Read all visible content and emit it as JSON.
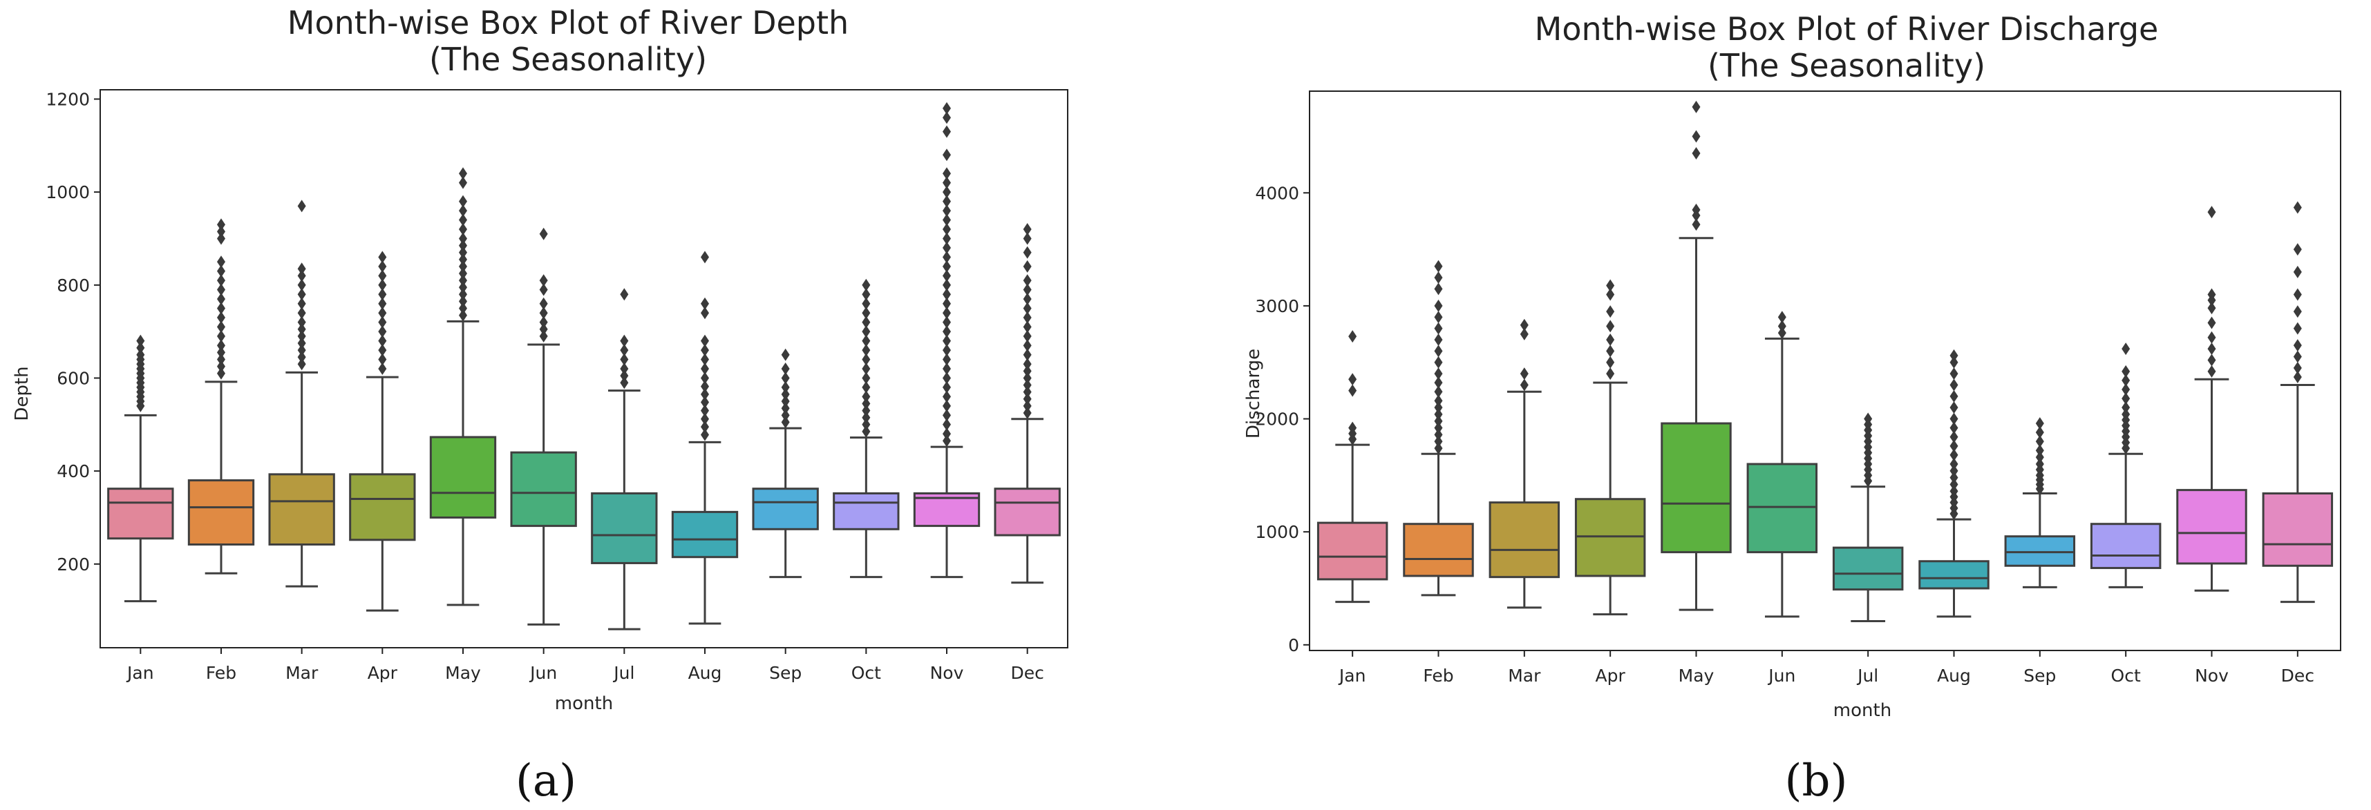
{
  "chart_data": [
    {
      "type": "box",
      "title_line1": "Month-wise Box Plot of River Depth",
      "title_line2": "(The Seasonality)",
      "xlabel": "month",
      "ylabel": "Depth",
      "ylim": [
        20,
        1220
      ],
      "yticks": [
        200,
        400,
        600,
        800,
        1000,
        1200
      ],
      "panel_label": "(a)",
      "categories": [
        "Jan",
        "Feb",
        "Mar",
        "Apr",
        "May",
        "Jun",
        "Jul",
        "Aug",
        "Sep",
        "Oct",
        "Nov",
        "Dec"
      ],
      "colors": [
        "#e1879a",
        "#e08a43",
        "#b69a3f",
        "#94a43e",
        "#5cb13f",
        "#48ae7b",
        "#45aa9b",
        "#3ea9b4",
        "#4fadd9",
        "#a69ef3",
        "#e483e3",
        "#e38ac1"
      ],
      "boxes": [
        {
          "whislo": 120,
          "q1": 255,
          "med": 332,
          "q3": 362,
          "whishi": 520,
          "fliers": [
            540,
            550,
            560,
            570,
            580,
            590,
            600,
            610,
            620,
            630,
            640,
            650,
            665,
            680
          ]
        },
        {
          "whislo": 180,
          "q1": 242,
          "med": 322,
          "q3": 380,
          "whishi": 592,
          "fliers": [
            610,
            625,
            640,
            655,
            670,
            690,
            710,
            730,
            750,
            770,
            790,
            810,
            830,
            850,
            900,
            915,
            930
          ]
        },
        {
          "whislo": 152,
          "q1": 242,
          "med": 335,
          "q3": 393,
          "whishi": 612,
          "fliers": [
            630,
            645,
            660,
            675,
            690,
            705,
            720,
            740,
            760,
            780,
            800,
            820,
            835,
            970
          ]
        },
        {
          "whislo": 100,
          "q1": 252,
          "med": 340,
          "q3": 393,
          "whishi": 602,
          "fliers": [
            620,
            640,
            660,
            680,
            700,
            720,
            740,
            760,
            780,
            800,
            820,
            840,
            860
          ]
        },
        {
          "whislo": 112,
          "q1": 300,
          "med": 353,
          "q3": 473,
          "whishi": 722,
          "fliers": [
            735,
            750,
            765,
            780,
            795,
            810,
            825,
            840,
            855,
            870,
            885,
            900,
            920,
            940,
            960,
            980,
            1020,
            1040
          ]
        },
        {
          "whislo": 70,
          "q1": 282,
          "med": 353,
          "q3": 440,
          "whishi": 672,
          "fliers": [
            690,
            705,
            720,
            740,
            760,
            790,
            810,
            910
          ]
        },
        {
          "whislo": 60,
          "q1": 202,
          "med": 262,
          "q3": 352,
          "whishi": 573,
          "fliers": [
            590,
            605,
            620,
            640,
            660,
            680,
            780
          ]
        },
        {
          "whislo": 72,
          "q1": 215,
          "med": 253,
          "q3": 312,
          "whishi": 462,
          "fliers": [
            478,
            495,
            512,
            530,
            548,
            565,
            582,
            600,
            620,
            640,
            660,
            680,
            740,
            760,
            860
          ]
        },
        {
          "whislo": 172,
          "q1": 275,
          "med": 333,
          "q3": 362,
          "whishi": 492,
          "fliers": [
            505,
            520,
            535,
            550,
            565,
            580,
            600,
            620,
            650
          ]
        },
        {
          "whislo": 172,
          "q1": 275,
          "med": 332,
          "q3": 352,
          "whishi": 472,
          "fliers": [
            485,
            500,
            515,
            530,
            545,
            560,
            580,
            600,
            620,
            640,
            660,
            680,
            700,
            720,
            740,
            760,
            780,
            800
          ]
        },
        {
          "whislo": 172,
          "q1": 282,
          "med": 342,
          "q3": 352,
          "whishi": 452,
          "fliers": [
            465,
            480,
            500,
            520,
            540,
            560,
            580,
            600,
            620,
            640,
            660,
            680,
            700,
            720,
            740,
            760,
            780,
            800,
            820,
            840,
            860,
            880,
            900,
            920,
            940,
            960,
            980,
            1000,
            1020,
            1040,
            1080,
            1130,
            1160,
            1180
          ]
        },
        {
          "whislo": 160,
          "q1": 262,
          "med": 332,
          "q3": 362,
          "whishi": 512,
          "fliers": [
            525,
            540,
            555,
            570,
            585,
            600,
            615,
            630,
            650,
            670,
            690,
            710,
            730,
            750,
            770,
            790,
            810,
            840,
            870,
            900,
            920
          ]
        }
      ]
    },
    {
      "type": "box",
      "title_line1": "Month-wise Box Plot of River Discharge",
      "title_line2": "(The Seasonality)",
      "xlabel": "month",
      "ylabel": "Discharge",
      "ylim": [
        -50,
        4900
      ],
      "yticks": [
        0,
        1000,
        2000,
        3000,
        4000
      ],
      "panel_label": "(b)",
      "categories": [
        "Jan",
        "Feb",
        "Mar",
        "Apr",
        "May",
        "Jun",
        "Jul",
        "Aug",
        "Sep",
        "Oct",
        "Nov",
        "Dec"
      ],
      "colors": [
        "#e1879a",
        "#e08a43",
        "#b69a3f",
        "#94a43e",
        "#5cb13f",
        "#48ae7b",
        "#45aa9b",
        "#3ea9b4",
        "#4fadd9",
        "#a69ef3",
        "#e483e3",
        "#e38ac1"
      ],
      "boxes": [
        {
          "whislo": 380,
          "q1": 580,
          "med": 780,
          "q3": 1080,
          "whishi": 1770,
          "fliers": [
            1820,
            1870,
            1920,
            2250,
            2350,
            2730
          ]
        },
        {
          "whislo": 440,
          "q1": 610,
          "med": 760,
          "q3": 1070,
          "whishi": 1690,
          "fliers": [
            1740,
            1800,
            1860,
            1920,
            1980,
            2040,
            2100,
            2160,
            2240,
            2320,
            2400,
            2500,
            2600,
            2700,
            2800,
            2900,
            3000,
            3150,
            3250,
            3350
          ]
        },
        {
          "whislo": 330,
          "q1": 600,
          "med": 840,
          "q3": 1260,
          "whishi": 2240,
          "fliers": [
            2300,
            2400,
            2750,
            2830
          ]
        },
        {
          "whislo": 270,
          "q1": 610,
          "med": 960,
          "q3": 1290,
          "whishi": 2320,
          "fliers": [
            2400,
            2500,
            2600,
            2700,
            2820,
            2950,
            3100,
            3180
          ]
        },
        {
          "whislo": 310,
          "q1": 820,
          "med": 1250,
          "q3": 1960,
          "whishi": 3600,
          "fliers": [
            3720,
            3800,
            3850,
            4350,
            4500,
            4760
          ]
        },
        {
          "whislo": 250,
          "q1": 820,
          "med": 1220,
          "q3": 1600,
          "whishi": 2710,
          "fliers": [
            2760,
            2820,
            2900
          ]
        },
        {
          "whislo": 210,
          "q1": 490,
          "med": 630,
          "q3": 860,
          "whishi": 1400,
          "fliers": [
            1450,
            1500,
            1550,
            1600,
            1650,
            1700,
            1750,
            1800,
            1850,
            1900,
            1950,
            2000
          ]
        },
        {
          "whislo": 250,
          "q1": 500,
          "med": 590,
          "q3": 740,
          "whishi": 1110,
          "fliers": [
            1160,
            1210,
            1260,
            1310,
            1360,
            1420,
            1480,
            1540,
            1600,
            1680,
            1760,
            1840,
            1920,
            2000,
            2100,
            2200,
            2300,
            2400,
            2500,
            2560
          ]
        },
        {
          "whislo": 510,
          "q1": 700,
          "med": 820,
          "q3": 960,
          "whishi": 1340,
          "fliers": [
            1380,
            1420,
            1460,
            1500,
            1550,
            1600,
            1660,
            1720,
            1800,
            1880,
            1960
          ]
        },
        {
          "whislo": 510,
          "q1": 680,
          "med": 790,
          "q3": 1070,
          "whishi": 1690,
          "fliers": [
            1740,
            1790,
            1840,
            1890,
            1940,
            1990,
            2040,
            2100,
            2180,
            2260,
            2340,
            2420,
            2620
          ]
        },
        {
          "whislo": 480,
          "q1": 720,
          "med": 990,
          "q3": 1370,
          "whishi": 2350,
          "fliers": [
            2420,
            2520,
            2620,
            2720,
            2850,
            2980,
            3050,
            3100,
            3830
          ]
        },
        {
          "whislo": 380,
          "q1": 700,
          "med": 890,
          "q3": 1340,
          "whishi": 2300,
          "fliers": [
            2370,
            2450,
            2550,
            2650,
            2800,
            2950,
            3100,
            3300,
            3500,
            3870
          ]
        }
      ]
    }
  ]
}
